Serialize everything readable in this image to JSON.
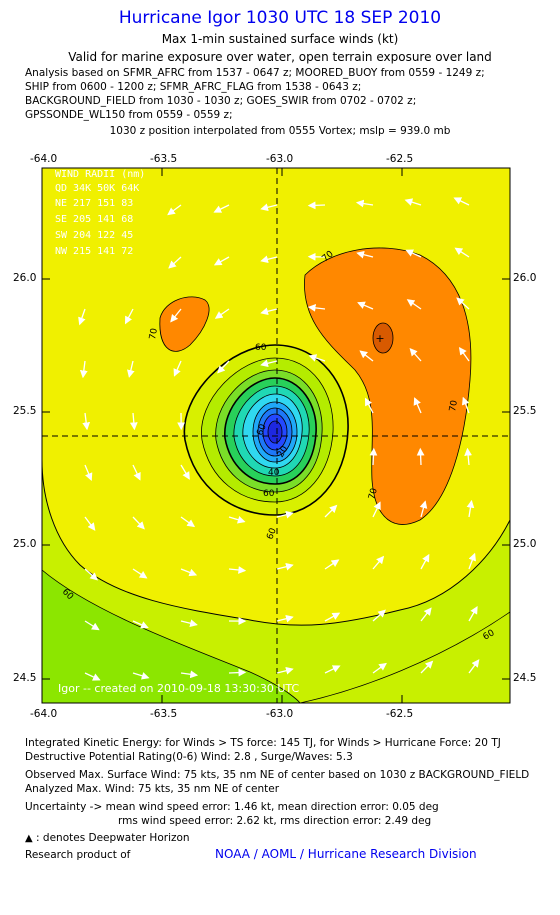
{
  "header": {
    "title": "Hurricane Igor 1030 UTC 18 SEP 2010",
    "subtitle1": "Max 1-min sustained surface winds (kt)",
    "subtitle2": "Valid for marine exposure over water, open terrain exposure over land",
    "analysis": [
      "Analysis based on SFMR_AFRC from 1537 - 0647 z; MOORED_BUOY from 0559 - 1249 z;",
      "SHIP from 0600 - 1200 z; SFMR_AFRC_FLAG from 1538 - 0643 z;",
      "BACKGROUND_FIELD from 1030 - 1030 z; GOES_SWIR from 0702 - 0702 z;",
      "GPSSONDE_WL150 from 0559 - 0559 z;"
    ],
    "position_note": "1030 z position interpolated from 0555 Vortex; mslp = 939.0 mb"
  },
  "map": {
    "x_ticks": [
      "-64.0",
      "-63.5",
      "-63.0",
      "-62.5"
    ],
    "y_ticks": [
      "26.0",
      "25.5",
      "25.0",
      "24.5"
    ],
    "wind_radii": {
      "title": "WIND RADII (nm)",
      "header": "QD  34K  50K  64K",
      "rows": [
        "NE  217  151   83",
        "SE  205  141   68",
        "SW  204  122   45",
        "NW  215  141   72"
      ]
    },
    "contour_labels": [
      "70",
      "70",
      "60",
      "70",
      "70",
      "60",
      "60",
      "60",
      "60",
      "40",
      "20",
      "60"
    ],
    "credit": "Igor -- created on 2010-09-18 13:30:30 UTC",
    "colors": {
      "band_50_60": "#c8f000",
      "band_60_70": "#f0f000",
      "band_70_80": "#ff8800",
      "band_40_60": "#8ce600",
      "eye_inner": "#30d8f0",
      "eye_core": "#2040ff"
    }
  },
  "footer": {
    "ike": "Integrated Kinetic Energy:  for Winds > TS force: 145 TJ,  for Winds > Hurricane Force: 20 TJ",
    "dpr": "Destructive Potential Rating(0-6)   Wind: 2.8 , Surge/Waves: 5.3",
    "observed": "Observed Max. Surface Wind: 75 kts, 35 nm NE of center based on 1030 z BACKGROUND_FIELD",
    "analyzed": "Analyzed Max. Wind: 75 kts, 35 nm NE of center",
    "uncert1": "Uncertainty -> mean wind speed error: 1.46 kt,   mean direction error: 0.05 deg",
    "uncert2": "rms wind speed error: 2.62 kt,   rms direction error: 2.49 deg",
    "dwh": ": denotes Deepwater Horizon",
    "research": "Research product of",
    "org": "NOAA / AOML / Hurricane Research Division"
  }
}
